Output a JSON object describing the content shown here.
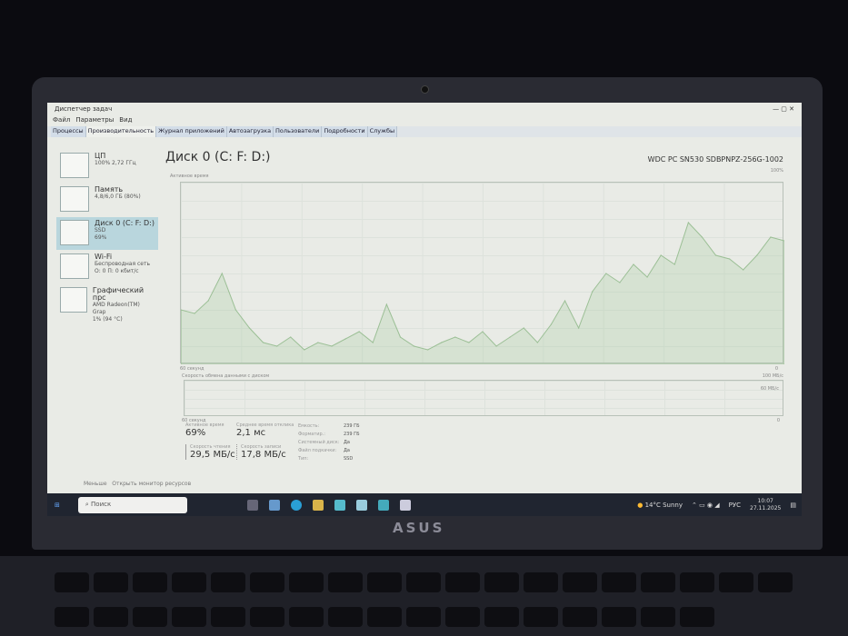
{
  "window": {
    "title": "Диспетчер задач",
    "menu": [
      "Файл",
      "Параметры",
      "Вид"
    ],
    "tabs": [
      "Процессы",
      "Производительность",
      "Журнал приложений",
      "Автозагрузка",
      "Пользователи",
      "Подробности",
      "Службы"
    ],
    "active_tab": 1
  },
  "sidebar": [
    {
      "name": "ЦП",
      "line1": "100% 2,72 ГГц",
      "line2": ""
    },
    {
      "name": "Память",
      "line1": "4,8/6,0 ГБ (80%)",
      "line2": ""
    },
    {
      "name": "Диск 0 (C: F: D:)",
      "line1": "SSD",
      "line2": "69%"
    },
    {
      "name": "Wi-Fi",
      "line1": "Беспроводная сеть",
      "line2": "О: 0 П: 0 кбит/с"
    },
    {
      "name": "Графический прс",
      "line1": "AMD Radeon(TM) Grap",
      "line2": "1% (94 °C)"
    }
  ],
  "main": {
    "title": "Диск 0 (C: F: D:)",
    "model": "WDC PC SN530 SDBPNPZ-256G-1002",
    "g1_label": "Активное время",
    "g1_max": "100%",
    "g1_time": "60 секунд",
    "g1_min": "0",
    "g2_label": "Скорость обмена данными с диском",
    "g2_max": "100 МБ/с",
    "g2_mid": "60 МБ/с",
    "g2_time": "60 секунд",
    "g2_min": "0"
  },
  "stats": {
    "active_label": "Активное время",
    "active": "69%",
    "resp_label": "Среднее время отклика",
    "resp": "2,1 мс",
    "read_label": "Скорость чтения",
    "read": "29,5 МБ/с",
    "write_label": "Скорость записи",
    "write": "17,8 МБ/с",
    "props": [
      [
        "Емкость:",
        "239 ГБ"
      ],
      [
        "Форматир.:",
        "239 ГБ"
      ],
      [
        "Системный диск:",
        "Да"
      ],
      [
        "Файл подкачки:",
        "Да"
      ],
      [
        "Тип:",
        "SSD"
      ]
    ]
  },
  "footer": {
    "less": "Меньше",
    "monitor": "Открыть монитор ресурсов"
  },
  "taskbar": {
    "search": "Поиск",
    "weather": "14°C  Sunny",
    "lang": "РУС",
    "time": "10:07",
    "date": "27.11.2025"
  },
  "laptop": {
    "brand": "ASUS"
  },
  "chart_data": {
    "type": "line",
    "title": "Активное время",
    "ylim": [
      0,
      100
    ],
    "values": [
      30,
      28,
      35,
      50,
      30,
      20,
      12,
      10,
      15,
      8,
      12,
      10,
      14,
      18,
      12,
      33,
      15,
      10,
      8,
      12,
      15,
      12,
      18,
      10,
      15,
      20,
      12,
      22,
      35,
      20,
      40,
      50,
      45,
      55,
      48,
      60,
      55,
      78,
      70,
      60,
      58,
      52,
      60,
      70,
      68
    ]
  }
}
